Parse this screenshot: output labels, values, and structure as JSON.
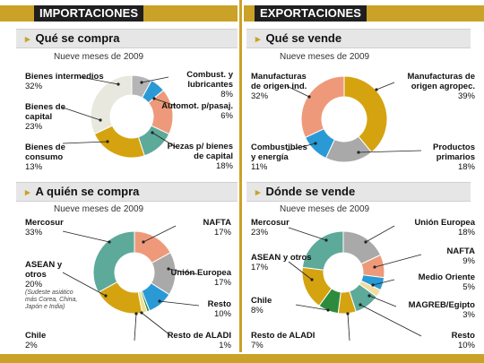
{
  "sections": {
    "importaciones": "IMPORTACIONES",
    "exportaciones": "EXPORTACIONES"
  },
  "panels": {
    "que_se_compra": {
      "title": "Qué se compra",
      "period": "Nueve meses de 2009"
    },
    "que_se_vende": {
      "title": "Qué se vende",
      "period": "Nueve meses de 2009"
    },
    "a_quien_se_compra": {
      "title": "A quién se compra",
      "period": "Nueve meses de 2009"
    },
    "donde_se_vende": {
      "title": "Dónde se vende",
      "period": "Nueve meses de 2009"
    }
  },
  "chart_data": [
    {
      "type": "pie",
      "title": "Qué se compra",
      "subtitle": "Nueve meses de 2009",
      "slices": [
        {
          "label": "Combust. y lubricantes",
          "display": "8%",
          "value": 8,
          "color": "#b5b5b5"
        },
        {
          "label": "Automot. p/pasaj.",
          "display": "6%",
          "value": 6,
          "color": "#2a9ad6"
        },
        {
          "label": "Piezas p/ bienes de capital",
          "display": "18%",
          "value": 18,
          "color": "#ee9a7a"
        },
        {
          "label": "Bienes de consumo",
          "display": "13%",
          "value": 13,
          "color": "#5da99a"
        },
        {
          "label": "Bienes de capital",
          "display": "23%",
          "value": 23,
          "color": "#d4a30f"
        },
        {
          "label": "Bienes intermedios",
          "display": "32%",
          "value": 32,
          "color": "#e8e8de"
        }
      ]
    },
    {
      "type": "pie",
      "title": "Qué se vende",
      "subtitle": "Nueve meses de 2009",
      "slices": [
        {
          "label": "Manufacturas de origen agropec.",
          "display": "39%",
          "value": 39,
          "color": "#d4a30f"
        },
        {
          "label": "Productos primarios",
          "display": "18%",
          "value": 18,
          "color": "#a9a9a9"
        },
        {
          "label": "Combustibles y energía",
          "display": "11%",
          "value": 11,
          "color": "#2a9ad6"
        },
        {
          "label": "Manufacturas de origen ind.",
          "display": "32%",
          "value": 32,
          "color": "#ee9a7a"
        }
      ]
    },
    {
      "type": "pie",
      "title": "A quién se compra",
      "subtitle": "Nueve meses de 2009",
      "slices": [
        {
          "label": "NAFTA",
          "display": "17%",
          "value": 17,
          "color": "#ee9a7a"
        },
        {
          "label": "Unión Europea",
          "display": "17%",
          "value": 17,
          "color": "#a9a9a9"
        },
        {
          "label": "Resto",
          "display": "10%",
          "value": 10,
          "color": "#2a9ad6"
        },
        {
          "label": "Resto de ALADI",
          "display": "1%",
          "value": 1,
          "color": "#2e8b3e"
        },
        {
          "label": "Chile",
          "display": "2%",
          "value": 2,
          "color": "#f0df8c"
        },
        {
          "label": "ASEAN y otros",
          "display": "20%",
          "value": 20,
          "color": "#d4a30f",
          "note": "(Sudeste asiático más Corea, China, Japón e India)"
        },
        {
          "label": "Mercosur",
          "display": "33%",
          "value": 33,
          "color": "#5da99a"
        }
      ]
    },
    {
      "type": "pie",
      "title": "Dónde se vende",
      "subtitle": "Nueve meses de 2009",
      "slices": [
        {
          "label": "Unión Europea",
          "display": "18%",
          "value": 18,
          "color": "#a9a9a9"
        },
        {
          "label": "NAFTA",
          "display": "9%",
          "value": 9,
          "color": "#ee9a7a"
        },
        {
          "label": "Medio Oriente",
          "display": "5%",
          "value": 5,
          "color": "#2a9ad6"
        },
        {
          "label": "MAGREB/Egipto",
          "display": "3%",
          "value": 3,
          "color": "#f3dca0"
        },
        {
          "label": "Resto",
          "display": "10%",
          "value": 10,
          "color": "#5da99a"
        },
        {
          "label": "Resto de ALADI",
          "display": "7%",
          "value": 7,
          "color": "#d4a30f"
        },
        {
          "label": "Chile",
          "display": "8%",
          "value": 8,
          "color": "#2e8b3e"
        },
        {
          "label": "ASEAN y otros",
          "display": "17%",
          "value": 17,
          "color": "#d4a30f"
        },
        {
          "label": "Mercosur",
          "display": "23%",
          "value": 23,
          "color": "#5da99a"
        }
      ]
    }
  ]
}
